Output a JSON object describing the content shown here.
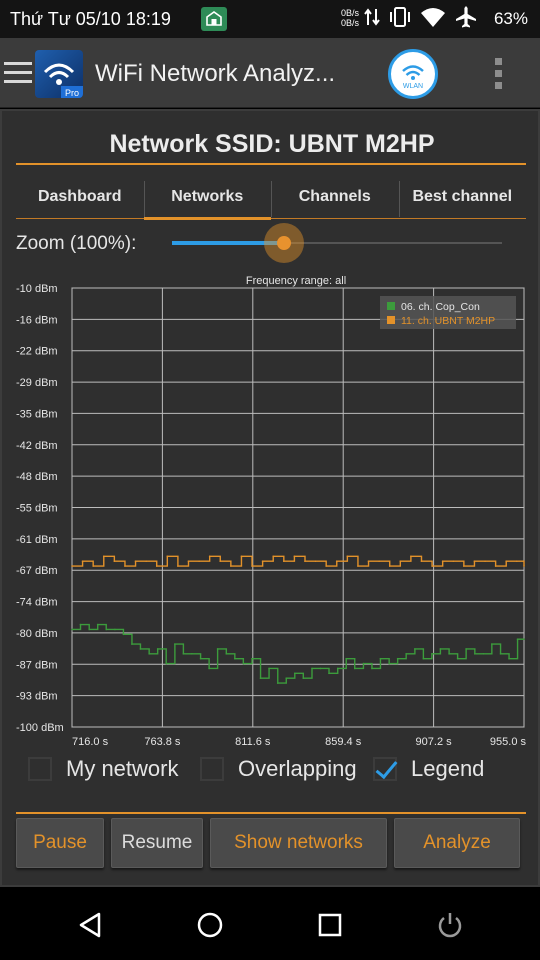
{
  "status_bar": {
    "time": "Thứ Tư 05/10 18:19",
    "net_up": "0B/s",
    "net_down": "0B/s",
    "battery": "63%",
    "icons": [
      "home-notification-icon",
      "data-arrows-icon",
      "vibrate-icon",
      "wifi-icon",
      "airplane-icon"
    ]
  },
  "app_bar": {
    "title": "WiFi Network Analyz...",
    "app_icon": "wifi-analyzer-pro-logo",
    "wlan_badge": "WLAN",
    "menu_icon": "hamburger-menu-icon",
    "overflow_icon": "overflow-menu-icon"
  },
  "header": {
    "ssid_title": "Network SSID: UBNT M2HP"
  },
  "tabs": [
    {
      "label": "Dashboard",
      "active": false
    },
    {
      "label": "Networks",
      "active": true
    },
    {
      "label": "Channels",
      "active": false
    },
    {
      "label": "Best channel",
      "active": false
    }
  ],
  "zoom": {
    "label": "Zoom (100%):",
    "value_fraction": 0.34
  },
  "chart_data": {
    "type": "line",
    "title": "Frequency range: all",
    "xlabel": "",
    "ylabel": "",
    "x_tick_labels": [
      "716.0 s",
      "763.8 s",
      "811.6 s",
      "859.4 s",
      "907.2 s",
      "955.0 s"
    ],
    "y_tick_labels": [
      "-10 dBm",
      "-16 dBm",
      "-22 dBm",
      "-29 dBm",
      "-35 dBm",
      "-42 dBm",
      "-48 dBm",
      "-55 dBm",
      "-61 dBm",
      "-67 dBm",
      "-74 dBm",
      "-80 dBm",
      "-87 dBm",
      "-93 dBm",
      "-100 dBm"
    ],
    "xlim": [
      716.0,
      955.0
    ],
    "ylim": [
      -100,
      -10
    ],
    "grid": true,
    "legend_position": "top-right",
    "series": [
      {
        "name": "06. ch. Cop_Con",
        "color": "#3c9c3c",
        "x": [
          716.0,
          720.5,
          725.1,
          729.6,
          734.1,
          738.7,
          743.2,
          747.7,
          752.2,
          756.8,
          761.3,
          765.8,
          770.4,
          774.9,
          779.4,
          784.0,
          788.5,
          793.0,
          797.6,
          802.1,
          806.6,
          811.2,
          815.7,
          820.2,
          824.8,
          829.3,
          833.8,
          838.3,
          842.9,
          847.4,
          851.9,
          856.5,
          861.0,
          865.5,
          870.1,
          874.6,
          879.1,
          883.7,
          888.2,
          892.7,
          897.3,
          901.8,
          906.3,
          910.8,
          915.4,
          919.9,
          924.4,
          929.0,
          933.5,
          938.0,
          942.6,
          947.1,
          951.6,
          955.0
        ],
        "y": [
          -80,
          -79,
          -80,
          -79,
          -80,
          -80,
          -81,
          -83,
          -84,
          -85,
          -84,
          -87,
          -83,
          -85,
          -85,
          -86,
          -88,
          -84,
          -85,
          -86,
          -87,
          -86,
          -90,
          -88,
          -91,
          -90,
          -89,
          -90,
          -88,
          -88,
          -89,
          -88,
          -86,
          -88,
          -87,
          -88,
          -86,
          -87,
          -86,
          -85,
          -84,
          -86,
          -85,
          -84,
          -85,
          -86,
          -84,
          -85,
          -85,
          -83,
          -85,
          -86,
          -82,
          -82
        ]
      },
      {
        "name": "11. ch. UBNT M2HP",
        "color": "#e3922a",
        "x": [
          716.0,
          721.6,
          727.2,
          732.8,
          738.4,
          744.0,
          749.6,
          755.2,
          760.8,
          766.4,
          772.0,
          777.6,
          783.2,
          788.8,
          794.4,
          800.0,
          805.6,
          811.2,
          816.8,
          822.4,
          828.0,
          833.6,
          839.2,
          844.8,
          850.4,
          856.0,
          861.6,
          867.2,
          872.8,
          878.4,
          884.0,
          889.6,
          895.2,
          900.8,
          906.4,
          912.0,
          917.6,
          923.2,
          928.8,
          934.4,
          940.0,
          945.6,
          951.2,
          955.0
        ],
        "y": [
          -67,
          -66,
          -67,
          -65,
          -66,
          -67,
          -66,
          -66,
          -67,
          -65,
          -67,
          -66,
          -66,
          -65,
          -66,
          -67,
          -65,
          -67,
          -66,
          -65,
          -66,
          -65,
          -66,
          -66,
          -67,
          -66,
          -65,
          -67,
          -66,
          -66,
          -67,
          -66,
          -65,
          -66,
          -67,
          -66,
          -66,
          -67,
          -66,
          -66,
          -67,
          -66,
          -66,
          -67
        ]
      }
    ]
  },
  "options": [
    {
      "label": "My network",
      "checked": false
    },
    {
      "label": "Overlapping",
      "checked": false
    },
    {
      "label": "Legend",
      "checked": true
    }
  ],
  "buttons": {
    "pause": "Pause",
    "resume": "Resume",
    "show_networks": "Show networks",
    "analyze": "Analyze"
  },
  "nav_bar": {
    "icons": [
      "back-icon",
      "home-icon",
      "recents-icon",
      "power-icon"
    ]
  }
}
